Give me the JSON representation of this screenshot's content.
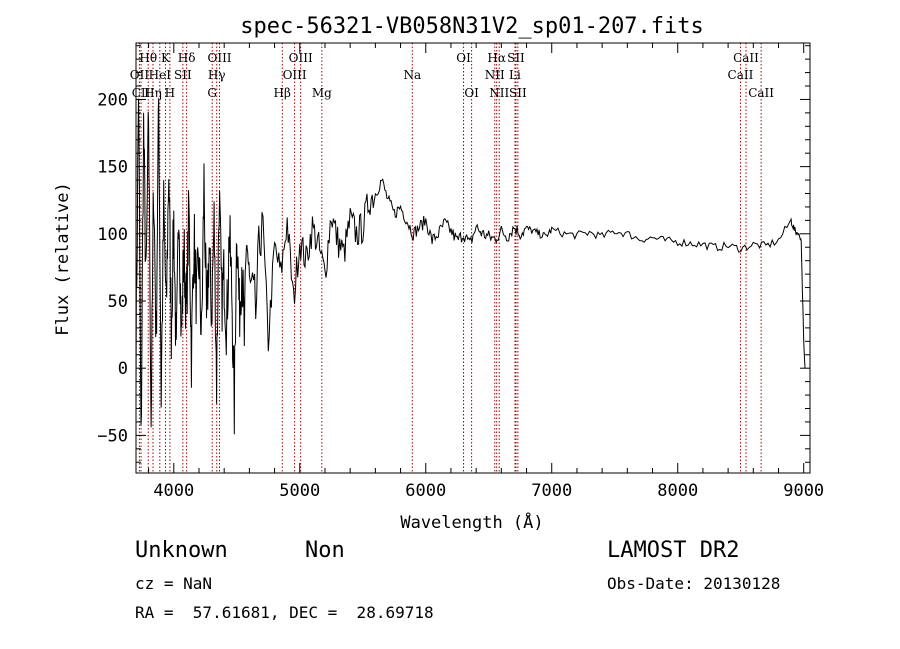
{
  "chart_data": {
    "type": "line",
    "title": "spec-56321-VB058N31V2_sp01-207.fits",
    "xlabel": "Wavelength (Å)",
    "ylabel": "Flux (relative)",
    "xlim": [
      3700,
      9050
    ],
    "ylim": [
      -78,
      242
    ],
    "xticks": [
      4000,
      5000,
      6000,
      7000,
      8000,
      9000
    ],
    "yticks": [
      -50,
      0,
      50,
      100,
      150,
      200
    ],
    "grid": false,
    "line_color": "#000000",
    "marker_color": "#aa0000",
    "x": [
      3700,
      3720,
      3740,
      3760,
      3780,
      3800,
      3820,
      3840,
      3860,
      3880,
      3900,
      3920,
      3940,
      3960,
      3980,
      4000,
      4020,
      4040,
      4060,
      4080,
      4100,
      4120,
      4140,
      4160,
      4180,
      4200,
      4220,
      4240,
      4260,
      4280,
      4300,
      4320,
      4340,
      4360,
      4380,
      4400,
      4420,
      4440,
      4460,
      4480,
      4500,
      4520,
      4540,
      4560,
      4580,
      4600,
      4650,
      4700,
      4750,
      4800,
      4850,
      4900,
      4950,
      5000,
      5050,
      5100,
      5150,
      5200,
      5250,
      5300,
      5350,
      5400,
      5450,
      5500,
      5550,
      5600,
      5650,
      5700,
      5750,
      5800,
      5850,
      5900,
      5950,
      6000,
      6050,
      6100,
      6150,
      6200,
      6250,
      6300,
      6350,
      6400,
      6450,
      6500,
      6550,
      6600,
      6650,
      6700,
      6750,
      6800,
      6850,
      6900,
      6950,
      7000,
      7100,
      7200,
      7300,
      7400,
      7500,
      7600,
      7700,
      7800,
      7900,
      8000,
      8100,
      8200,
      8300,
      8400,
      8500,
      8600,
      8700,
      8800,
      8900,
      8930,
      8960,
      8980,
      9000,
      9010
    ],
    "y": [
      5,
      210,
      -60,
      180,
      60,
      190,
      -40,
      140,
      20,
      200,
      -20,
      120,
      40,
      150,
      30,
      110,
      0,
      130,
      20,
      90,
      40,
      120,
      10,
      100,
      50,
      80,
      20,
      140,
      30,
      90,
      40,
      110,
      -10,
      130,
      50,
      70,
      30,
      100,
      60,
      -30,
      110,
      40,
      80,
      20,
      100,
      60,
      40,
      120,
      20,
      90,
      70,
      110,
      50,
      95,
      80,
      105,
      90,
      70,
      115,
      95,
      85,
      110,
      100,
      105,
      125,
      130,
      140,
      125,
      115,
      120,
      110,
      100,
      105,
      110,
      95,
      100,
      108,
      102,
      95,
      100,
      92,
      105,
      100,
      98,
      96,
      102,
      98,
      105,
      100,
      104,
      102,
      100,
      98,
      103,
      100,
      99,
      101,
      98,
      102,
      100,
      96,
      97,
      95,
      94,
      93,
      92,
      90,
      91,
      89,
      92,
      91,
      95,
      110,
      102,
      100,
      95,
      20,
      0
    ],
    "lines": [
      {
        "label": "Hθ",
        "x": 3797,
        "row": 0
      },
      {
        "label": "OII",
        "x": 3727,
        "row": 1
      },
      {
        "label": "CII",
        "x": 3740,
        "row": 2
      },
      {
        "label": "Hη",
        "x": 3835,
        "row": 2
      },
      {
        "label": "HeI",
        "x": 3889,
        "row": 1
      },
      {
        "label": "K",
        "x": 3934,
        "row": 0
      },
      {
        "label": "H",
        "x": 3969,
        "row": 2
      },
      {
        "label": "SII",
        "x": 4072,
        "row": 1
      },
      {
        "label": "Hδ",
        "x": 4102,
        "row": 0
      },
      {
        "label": "OIII",
        "x": 4363,
        "row": 0
      },
      {
        "label": "Hγ",
        "x": 4341,
        "row": 1
      },
      {
        "label": "G",
        "x": 4305,
        "row": 2
      },
      {
        "label": "Hβ",
        "x": 4861,
        "row": 2
      },
      {
        "label": "OIII",
        "x": 5007,
        "row": 0
      },
      {
        "label": "OIII",
        "x": 4959,
        "row": 1
      },
      {
        "label": "Mg",
        "x": 5175,
        "row": 2
      },
      {
        "label": "Na",
        "x": 5893,
        "row": 1
      },
      {
        "label": "OI",
        "x": 6300,
        "row": 0
      },
      {
        "label": "OI",
        "x": 6364,
        "row": 2
      },
      {
        "label": "Hα",
        "x": 6563,
        "row": 0
      },
      {
        "label": "NII",
        "x": 6548,
        "row": 1
      },
      {
        "label": "NII",
        "x": 6583,
        "row": 2
      },
      {
        "label": "SII",
        "x": 6716,
        "row": 0
      },
      {
        "label": "Li",
        "x": 6708,
        "row": 1
      },
      {
        "label": "SII",
        "x": 6731,
        "row": 2
      },
      {
        "label": "CaII",
        "x": 8542,
        "row": 0
      },
      {
        "label": "CaII",
        "x": 8498,
        "row": 1
      },
      {
        "label": "CaII",
        "x": 8662,
        "row": 2
      }
    ]
  },
  "info": {
    "class": "Unknown",
    "subclass": "Non",
    "cz": "cz = NaN",
    "coords": "RA =  57.61681, DEC =  28.69718",
    "survey": "LAMOST DR2",
    "obsdate": "Obs-Date: 20130128"
  }
}
